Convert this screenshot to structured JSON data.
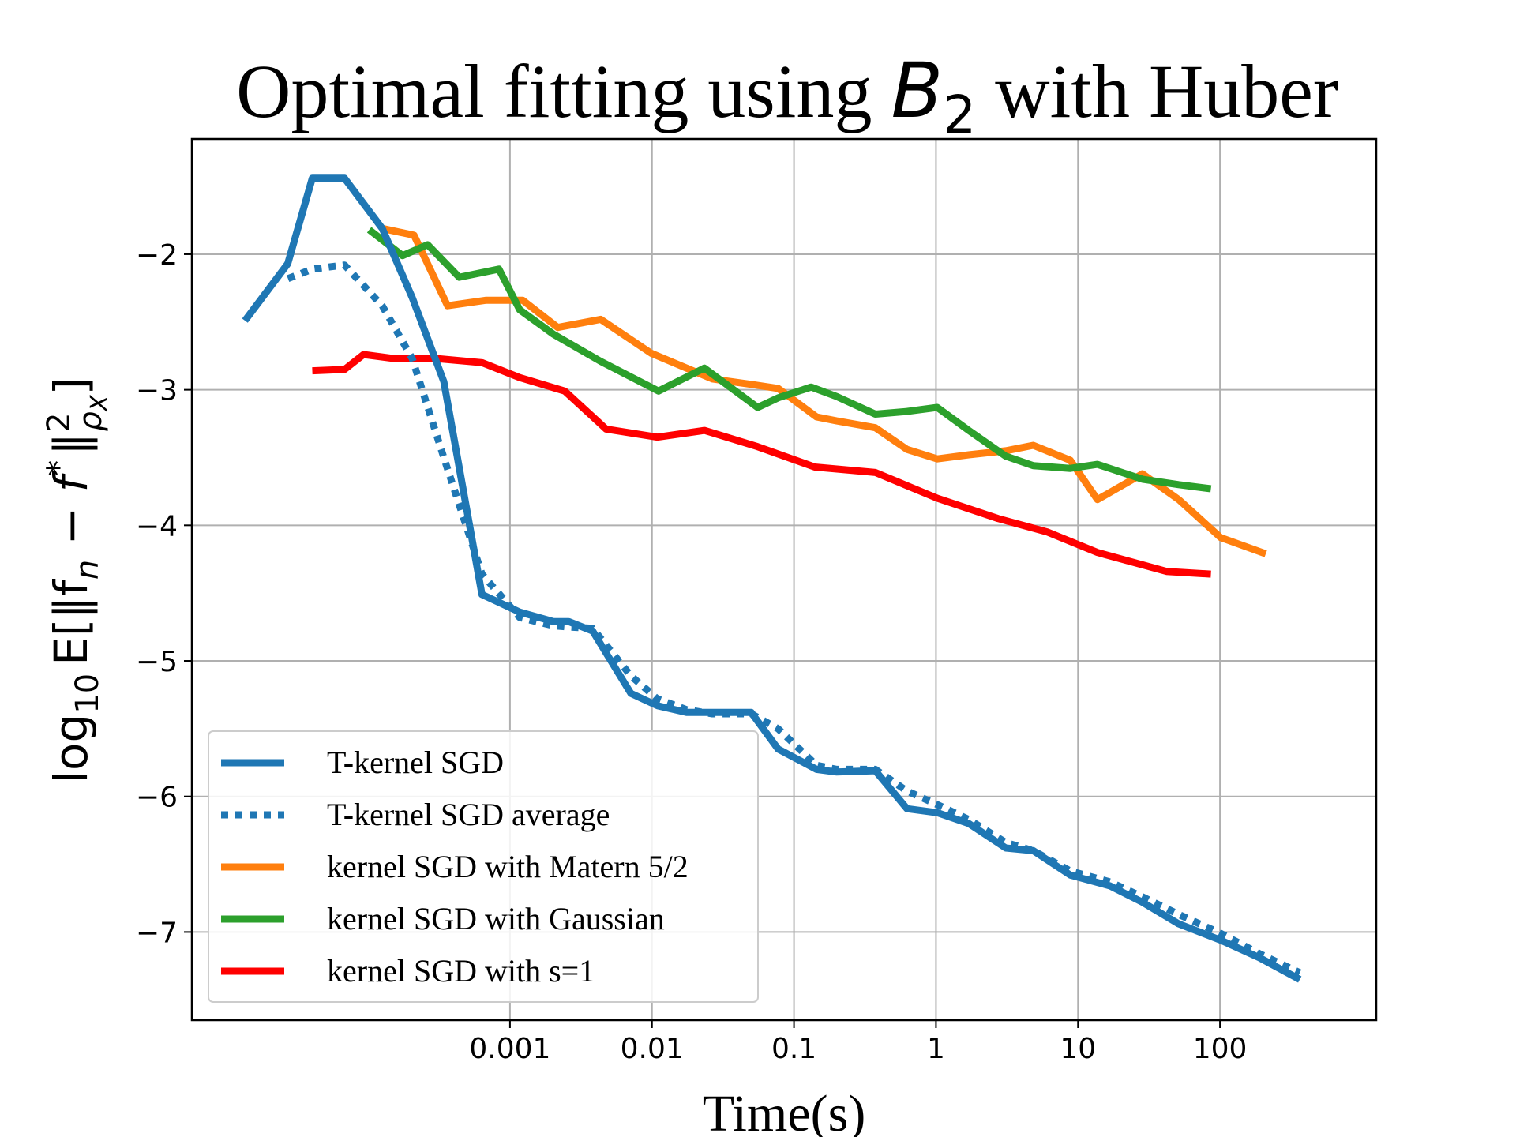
{
  "chart_data": {
    "type": "line",
    "title_prefix": "Optimal fitting using ",
    "title_math_base": "B",
    "title_math_sub": "2",
    "title_suffix": " with Huber",
    "xlabel": "Time(s)",
    "ylabel": "log₁₀ E[‖fₙ − f*‖²ρX]",
    "ylabel_parts": {
      "log": "log",
      "log_sub": "10",
      "body": "E[‖f",
      "f_sub": "n",
      "mid": " − f",
      "star": "*",
      "norm": "‖",
      "sq": "2",
      "rho": "ρ",
      "rho_sub": "X",
      "close": "]"
    },
    "x_scale": "log",
    "xlim": [
      5.75e-06,
      1260
    ],
    "ylim": [
      -7.65,
      -1.15
    ],
    "x_ticks": [
      0.001,
      0.01,
      0.1,
      1,
      10,
      100
    ],
    "x_tick_labels": [
      "0.001",
      "0.01",
      "0.1",
      "1",
      "10",
      "100"
    ],
    "y_ticks": [
      -2,
      -3,
      -4,
      -5,
      -6,
      -7
    ],
    "y_tick_labels": [
      "−2",
      "−3",
      "−4",
      "−5",
      "−6",
      "−7"
    ],
    "grid": true,
    "legend_position": "lower-left",
    "series": [
      {
        "name": "T-kernel SGD",
        "color": "#1f77b4",
        "dash": "solid",
        "x": [
          1.36e-05,
          2.72e-05,
          4.05e-05,
          6.84e-05,
          0.000126,
          0.000205,
          0.000342,
          0.000635,
          0.00117,
          0.00202,
          0.00259,
          0.00382,
          0.0071,
          0.0109,
          0.0175,
          0.0266,
          0.05,
          0.0772,
          0.144,
          0.2,
          0.374,
          0.625,
          1.02,
          1.7,
          3.1,
          4.84,
          8.82,
          16.8,
          28.4,
          51.2,
          101,
          190,
          365
        ],
        "y": [
          -2.49,
          -2.07,
          -1.44,
          -1.44,
          -1.81,
          -2.32,
          -2.94,
          -4.51,
          -4.64,
          -4.71,
          -4.71,
          -4.78,
          -5.24,
          -5.33,
          -5.38,
          -5.38,
          -5.38,
          -5.65,
          -5.8,
          -5.82,
          -5.81,
          -6.09,
          -6.12,
          -6.2,
          -6.38,
          -6.4,
          -6.58,
          -6.66,
          -6.78,
          -6.94,
          -7.06,
          -7.19,
          -7.35
        ]
      },
      {
        "name": "T-kernel SGD average",
        "color": "#1f77b4",
        "dash": "dotted",
        "x": [
          2.73e-05,
          4.05e-05,
          6.84e-05,
          0.000126,
          0.000205,
          0.000342,
          0.000635,
          0.00117,
          0.00202,
          0.00259,
          0.00382,
          0.0071,
          0.0109,
          0.0175,
          0.0266,
          0.05,
          0.0772,
          0.144,
          0.2,
          0.374,
          0.625,
          1.02,
          1.7,
          3.1,
          4.84,
          8.82,
          16.8,
          28.4,
          51.2,
          101,
          190,
          365
        ],
        "y": [
          -2.18,
          -2.11,
          -2.08,
          -2.38,
          -2.77,
          -3.5,
          -4.36,
          -4.68,
          -4.74,
          -4.75,
          -4.76,
          -5.11,
          -5.28,
          -5.36,
          -5.39,
          -5.39,
          -5.5,
          -5.77,
          -5.8,
          -5.8,
          -5.96,
          -6.06,
          -6.17,
          -6.34,
          -6.4,
          -6.55,
          -6.63,
          -6.74,
          -6.87,
          -7.01,
          -7.16,
          -7.3
        ]
      },
      {
        "name": "kernel SGD with Matern 5/2",
        "color": "#ff7f0e",
        "dash": "solid",
        "x": [
          0.000126,
          0.000211,
          0.000363,
          0.000673,
          0.00123,
          0.00217,
          0.00435,
          0.00985,
          0.0175,
          0.0266,
          0.05,
          0.0772,
          0.144,
          0.2,
          0.374,
          0.625,
          1.02,
          1.7,
          3.1,
          4.84,
          8.82,
          13.7,
          28.4,
          51.2,
          101,
          210
        ],
        "y": [
          -1.81,
          -1.86,
          -2.38,
          -2.34,
          -2.34,
          -2.54,
          -2.48,
          -2.73,
          -2.84,
          -2.92,
          -2.96,
          -2.99,
          -3.2,
          -3.23,
          -3.28,
          -3.44,
          -3.51,
          -3.48,
          -3.45,
          -3.41,
          -3.52,
          -3.81,
          -3.62,
          -3.81,
          -4.09,
          -4.21
        ]
      },
      {
        "name": "kernel SGD with Gaussian",
        "color": "#2ca02c",
        "dash": "solid",
        "x": [
          0.000102,
          0.000175,
          0.000263,
          0.000439,
          0.000836,
          0.00117,
          0.00202,
          0.00435,
          0.0111,
          0.0234,
          0.0554,
          0.0772,
          0.132,
          0.2,
          0.374,
          0.625,
          1.02,
          1.7,
          3.1,
          4.84,
          8.82,
          13.7,
          28.4,
          51.2,
          86.3
        ],
        "y": [
          -1.82,
          -2.01,
          -1.93,
          -2.17,
          -2.11,
          -2.41,
          -2.59,
          -2.79,
          -3.01,
          -2.84,
          -3.13,
          -3.06,
          -2.98,
          -3.05,
          -3.18,
          -3.16,
          -3.13,
          -3.3,
          -3.49,
          -3.56,
          -3.58,
          -3.55,
          -3.66,
          -3.7,
          -3.73
        ]
      },
      {
        "name": "kernel SGD with s=1",
        "color": "#ff0000",
        "dash": "solid",
        "x": [
          4.05e-05,
          6.84e-05,
          9.3e-05,
          0.000152,
          0.000305,
          0.000636,
          0.00117,
          0.00243,
          0.00475,
          0.0109,
          0.0234,
          0.0554,
          0.14,
          0.374,
          1.02,
          2.73,
          6.11,
          13.7,
          42,
          86.3
        ],
        "y": [
          -2.86,
          -2.85,
          -2.74,
          -2.77,
          -2.77,
          -2.8,
          -2.91,
          -3.01,
          -3.29,
          -3.35,
          -3.3,
          -3.42,
          -3.57,
          -3.61,
          -3.8,
          -3.95,
          -4.05,
          -4.2,
          -4.34,
          -4.36
        ]
      }
    ]
  }
}
